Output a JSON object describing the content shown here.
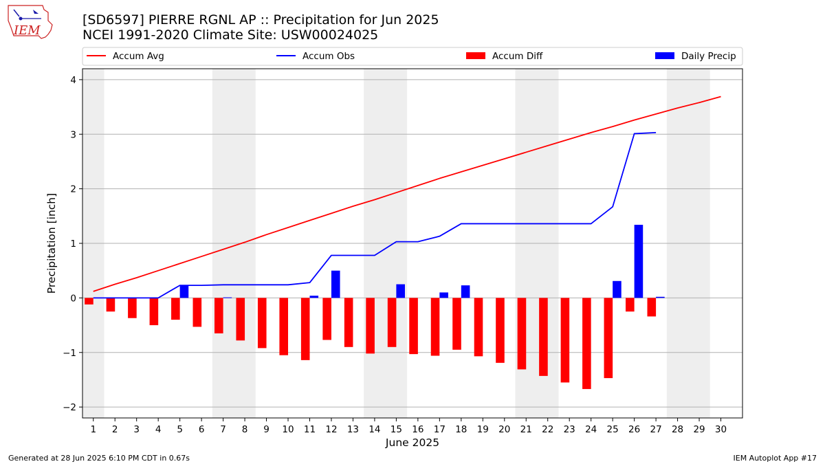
{
  "logo": {
    "text": "IEM"
  },
  "header": {
    "title_line1": "[SD6597] PIERRE RGNL AP :: Precipitation for Jun 2025",
    "title_line2": "NCEI 1991-2020 Climate Site: USW00024025"
  },
  "footer": {
    "left": "Generated at 28 Jun 2025 6:10 PM CDT in 0.67s",
    "right": "IEM Autoplot App #17"
  },
  "colors": {
    "avg": "#ff0000",
    "obs": "#0000ff",
    "diff": "#ff0000",
    "daily": "#0000ff",
    "weekend_band": "#eeeeee",
    "grid": "#b0b0b0"
  },
  "chart_data": {
    "type": "bar",
    "xlabel": "June 2025",
    "ylabel": "Precipitation [inch]",
    "ylim": [
      -2.2,
      4.2
    ],
    "xlim": [
      0.5,
      31
    ],
    "yticks": [
      -2,
      -1,
      0,
      1,
      2,
      3,
      4
    ],
    "ytick_labels": [
      "−2",
      "−1",
      "0",
      "1",
      "2",
      "3",
      "4"
    ],
    "days": [
      1,
      2,
      3,
      4,
      5,
      6,
      7,
      8,
      9,
      10,
      11,
      12,
      13,
      14,
      15,
      16,
      17,
      18,
      19,
      20,
      21,
      22,
      23,
      24,
      25,
      26,
      27,
      28,
      29,
      30
    ],
    "shaded_days": [
      [
        1,
        1
      ],
      [
        7,
        8
      ],
      [
        14,
        15
      ],
      [
        21,
        22
      ],
      [
        28,
        29
      ]
    ],
    "grid": true,
    "legend_position": "top, above plot",
    "series": [
      {
        "name": "Accum Avg",
        "kind": "line",
        "values": [
          0.12,
          0.25,
          0.37,
          0.5,
          0.63,
          0.76,
          0.89,
          1.02,
          1.16,
          1.29,
          1.42,
          1.55,
          1.68,
          1.8,
          1.93,
          2.06,
          2.19,
          2.31,
          2.43,
          2.55,
          2.67,
          2.79,
          2.91,
          3.03,
          3.14,
          3.26,
          3.37,
          3.48,
          3.58,
          3.69
        ]
      },
      {
        "name": "Accum Obs",
        "kind": "line",
        "values": [
          0.0,
          0.0,
          0.0,
          0.0,
          0.23,
          0.23,
          0.24,
          0.24,
          0.24,
          0.24,
          0.28,
          0.78,
          0.78,
          0.78,
          1.03,
          1.03,
          1.13,
          1.36,
          1.36,
          1.36,
          1.36,
          1.36,
          1.36,
          1.36,
          1.67,
          3.01,
          3.03
        ]
      },
      {
        "name": "Accum Diff",
        "kind": "bar",
        "values": [
          -0.12,
          -0.25,
          -0.37,
          -0.5,
          -0.4,
          -0.53,
          -0.65,
          -0.78,
          -0.92,
          -1.05,
          -1.14,
          -0.77,
          -0.9,
          -1.02,
          -0.9,
          -1.03,
          -1.06,
          -0.95,
          -1.07,
          -1.19,
          -1.31,
          -1.43,
          -1.55,
          -1.67,
          -1.47,
          -0.25,
          -0.34
        ]
      },
      {
        "name": "Daily Precip",
        "kind": "bar",
        "values": [
          0,
          0,
          0,
          0,
          0.23,
          0,
          0.01,
          0,
          0,
          0,
          0.04,
          0.5,
          0,
          0,
          0.25,
          0,
          0.1,
          0.23,
          0,
          0,
          0,
          0,
          0,
          0,
          0.31,
          1.34,
          0.02
        ]
      }
    ]
  }
}
